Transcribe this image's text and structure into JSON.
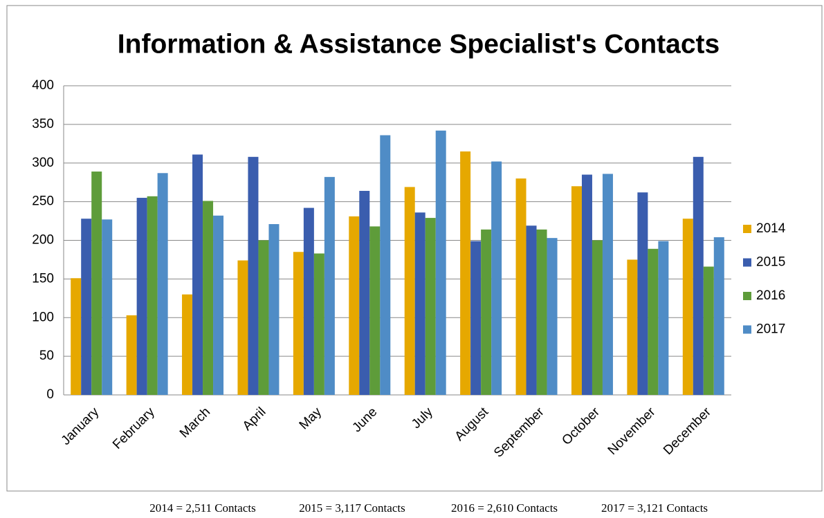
{
  "chart_data": {
    "type": "bar",
    "title": "Information & Assistance Specialist's Contacts",
    "categories": [
      "January",
      "February",
      "March",
      "April",
      "May",
      "June",
      "July",
      "August",
      "September",
      "October",
      "November",
      "December"
    ],
    "series": [
      {
        "name": "2014",
        "color": "#e6a800",
        "values": [
          151,
          103,
          130,
          174,
          185,
          231,
          269,
          315,
          280,
          270,
          175,
          228
        ]
      },
      {
        "name": "2015",
        "color": "#3a5dae",
        "values": [
          228,
          255,
          311,
          308,
          242,
          264,
          236,
          199,
          219,
          285,
          262,
          308
        ]
      },
      {
        "name": "2016",
        "color": "#5e9c3a",
        "values": [
          289,
          257,
          251,
          200,
          183,
          218,
          229,
          214,
          214,
          200,
          189,
          166
        ]
      },
      {
        "name": "2017",
        "color": "#4f8cc6",
        "values": [
          227,
          287,
          232,
          221,
          282,
          336,
          342,
          302,
          203,
          286,
          199,
          204
        ]
      }
    ],
    "ylim": [
      0,
      400
    ],
    "yticks": [
      0,
      50,
      100,
      150,
      200,
      250,
      300,
      350,
      400
    ],
    "grid": true,
    "legend": "right",
    "footer": [
      "2014 = 2,511 Contacts",
      "2015 = 3,117 Contacts",
      "2016 = 2,610 Contacts",
      "2017 = 3,121 Contacts"
    ]
  }
}
